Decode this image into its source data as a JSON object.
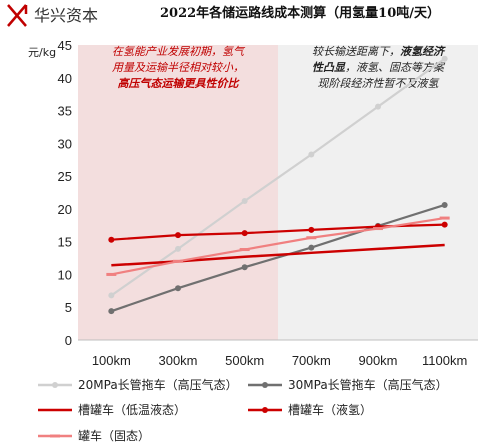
{
  "brand": {
    "name": "华兴资本",
    "color": "#c00000"
  },
  "chart_data": {
    "type": "line",
    "title": "2022年各储运路线成本测算（用氢量10吨/天）",
    "ylabel": "元/kg",
    "xlabel": "",
    "categories": [
      "100km",
      "300km",
      "500km",
      "700km",
      "900km",
      "1100km"
    ],
    "ylim": [
      0,
      45
    ],
    "yticks": [
      0,
      5,
      10,
      15,
      20,
      25,
      30,
      35,
      40,
      45
    ],
    "grid": false,
    "legend_position": "bottom",
    "regions": [
      {
        "from_category": 0,
        "to_category": 2,
        "color": "#f3dede"
      },
      {
        "from_category": 3,
        "to_category": 5,
        "color": "#f0f0f0"
      }
    ],
    "annotations": [
      {
        "region": 0,
        "lines": [
          [
            {
              "text": "在氢能产业发展初期，氢气",
              "bold": false
            }
          ],
          [
            {
              "text": "用量及运输半径相对较小，",
              "bold": false
            }
          ],
          [
            {
              "text": "高压气态运输更具性价比",
              "bold": true
            }
          ]
        ]
      },
      {
        "region": 1,
        "lines": [
          [
            {
              "text": "较长输送距离下，",
              "bold": false
            },
            {
              "text": "液氢经济",
              "bold": true
            }
          ],
          [
            {
              "text": "性凸显",
              "bold": true
            },
            {
              "text": "，液氢、固态等方案",
              "bold": false
            }
          ],
          [
            {
              "text": "现阶段经济性暂不及液氢",
              "bold": false
            }
          ]
        ]
      }
    ],
    "series": [
      {
        "name": "20MPa长管拖车（高压气态）",
        "values": [
          6.8,
          13.9,
          21.2,
          28.3,
          35.6,
          42.9
        ],
        "color": "#d0d0d0",
        "marker": "circle"
      },
      {
        "name": "30MPa长管拖车（高压气态）",
        "values": [
          4.4,
          7.9,
          11.1,
          14.1,
          17.4,
          20.6
        ],
        "color": "#707070",
        "marker": "circle"
      },
      {
        "name": "槽罐车（低温液态）",
        "values": [
          11.4,
          12.0,
          12.7,
          13.3,
          13.9,
          14.5
        ],
        "color": "#cc0000",
        "marker": "none"
      },
      {
        "name": "槽罐车（液氢）",
        "values": [
          15.3,
          16.0,
          16.3,
          16.8,
          17.3,
          17.6
        ],
        "color": "#cc0000",
        "marker": "circle"
      },
      {
        "name": "罐车（固态）",
        "values": [
          10.0,
          12.0,
          13.8,
          15.6,
          17.0,
          18.6
        ],
        "color": "#f08080",
        "marker": "dash"
      }
    ]
  }
}
